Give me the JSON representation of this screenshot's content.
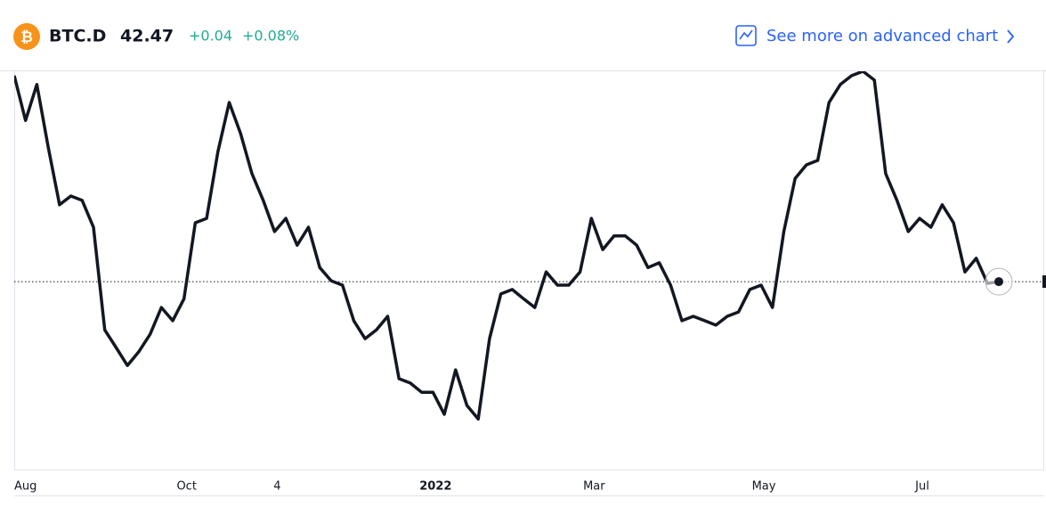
{
  "header": {
    "symbol": "BTC.D",
    "price": "42.47",
    "change": "+0.04",
    "change_percent": "+0.08%",
    "link": "See more on advanced chart"
  },
  "chart_data": {
    "type": "line",
    "color": "#131722",
    "categories": [
      "Aug",
      null,
      null,
      null,
      null,
      null,
      null,
      null,
      null,
      null,
      null,
      null,
      null,
      null,
      null,
      "Oct",
      null,
      null,
      null,
      null,
      null,
      null,
      null,
      "4",
      null,
      null,
      null,
      null,
      null,
      null,
      null,
      null,
      null,
      null,
      null,
      null,
      null,
      "2022",
      null,
      null,
      null,
      null,
      null,
      null,
      null,
      null,
      null,
      null,
      null,
      null,
      null,
      "Mar",
      null,
      null,
      null,
      null,
      null,
      null,
      null,
      null,
      null,
      null,
      null,
      null,
      null,
      null,
      "May",
      null,
      null,
      null,
      null,
      null,
      null,
      null,
      null,
      null,
      null,
      null,
      null,
      null,
      "Jul",
      null,
      null,
      null,
      null,
      null,
      null,
      null
    ],
    "values": [
      47.16,
      46.14,
      46.96,
      45.54,
      44.22,
      44.42,
      44.32,
      43.71,
      41.37,
      40.97,
      40.56,
      40.87,
      41.27,
      41.88,
      41.58,
      42.08,
      43.81,
      43.91,
      45.43,
      46.55,
      45.84,
      44.93,
      44.32,
      43.61,
      43.91,
      43.3,
      43.71,
      42.79,
      42.49,
      42.39,
      41.58,
      41.17,
      41.37,
      41.68,
      40.26,
      40.16,
      39.95,
      39.95,
      39.45,
      40.46,
      39.65,
      39.34,
      41.17,
      42.19,
      42.29,
      42.08,
      41.88,
      42.69,
      42.39,
      42.39,
      42.69,
      43.91,
      43.2,
      43.51,
      43.51,
      43.3,
      42.79,
      42.9,
      42.39,
      41.58,
      41.68,
      41.58,
      41.48,
      41.68,
      41.78,
      42.29,
      42.39,
      41.88,
      43.61,
      44.82,
      45.13,
      45.23,
      46.55,
      46.96,
      47.16,
      47.26,
      47.06,
      44.93,
      44.32,
      43.61,
      43.91,
      43.71,
      44.22,
      43.81,
      42.69,
      43.0,
      42.43,
      42.47
    ],
    "ylim": [
      38.19,
      47.26
    ]
  }
}
